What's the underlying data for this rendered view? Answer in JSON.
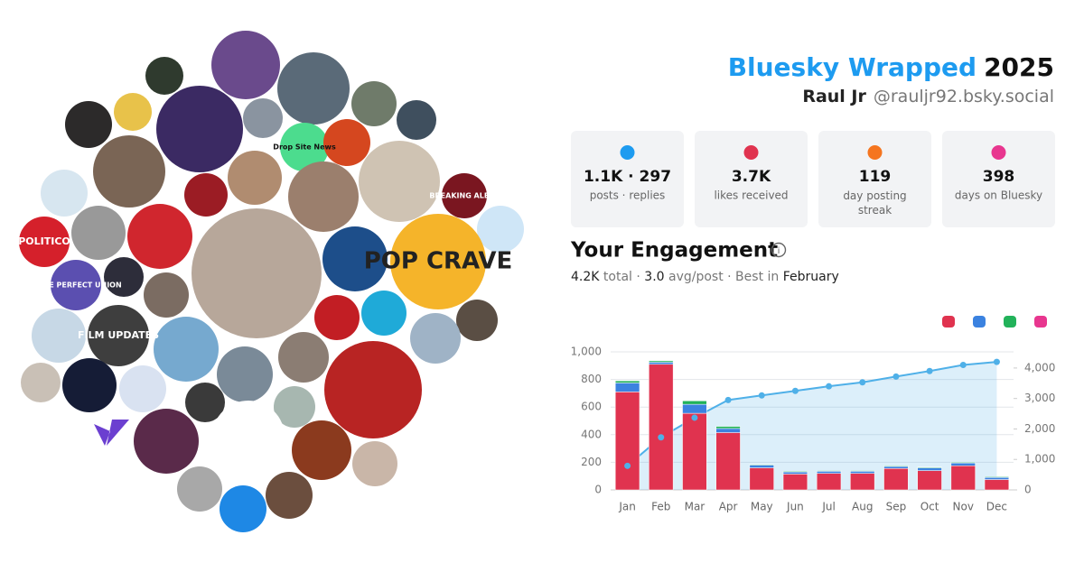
{
  "header": {
    "title": "Bluesky Wrapped",
    "year": "2025",
    "name": "Raul Jr",
    "handle": "@rauljr92.bsky.social"
  },
  "stats": [
    {
      "value": "1.1K · 297",
      "label": "posts · replies"
    },
    {
      "value": "3.7K",
      "label": "likes received"
    },
    {
      "value": "119",
      "label": "day posting streak"
    },
    {
      "value": "398",
      "label": "days on Bluesky"
    }
  ],
  "engagement": {
    "title": "Your Engagement",
    "total": "4.2K",
    "total_label": "total ·",
    "avg": "3.0",
    "avg_label": "avg/post · Best in",
    "best": "February"
  },
  "avatars": [
    "POLITICO",
    "MORE PERFECT UNION",
    "FILM UPDATES",
    "Drop Site News",
    "BREAKING ALERT",
    "POP CRAVE"
  ],
  "chart_data": {
    "type": "bar",
    "categories": [
      "Jan",
      "Feb",
      "Mar",
      "Apr",
      "May",
      "Jun",
      "Jul",
      "Aug",
      "Sep",
      "Oct",
      "Nov",
      "Dec"
    ],
    "series": [
      {
        "color": "#e0334f",
        "values": [
          710,
          910,
          555,
          415,
          160,
          115,
          120,
          120,
          155,
          140,
          175,
          75
        ]
      },
      {
        "color": "#3b82e0",
        "values": [
          65,
          15,
          65,
          30,
          20,
          15,
          15,
          15,
          15,
          20,
          20,
          15
        ]
      },
      {
        "color": "#22b25a",
        "values": [
          15,
          10,
          25,
          15,
          5,
          5,
          5,
          5,
          5,
          5,
          5,
          5
        ]
      },
      {
        "color": "#e8368f",
        "values": [
          0,
          0,
          0,
          0,
          0,
          0,
          0,
          0,
          0,
          0,
          0,
          0
        ]
      },
      {
        "color": "#4fb0e8",
        "axis": "y2",
        "values": [
          790,
          1725,
          2370,
          2950,
          3100,
          3250,
          3400,
          3530,
          3720,
          3900,
          4100,
          4200
        ]
      }
    ],
    "ylim": [
      0,
      1000
    ],
    "yticks": [
      0,
      200,
      400,
      600,
      800,
      {
        "value": 1000,
        "label": "1,000"
      }
    ],
    "y2lim": [
      0,
      4530
    ],
    "y2ticks": [
      0,
      {
        "value": 1000,
        "label": "1,000"
      },
      {
        "value": 2000,
        "label": "2,000"
      },
      {
        "value": 3000,
        "label": "3,000"
      },
      {
        "value": 4000,
        "label": "4,000"
      }
    ],
    "grid": true
  }
}
